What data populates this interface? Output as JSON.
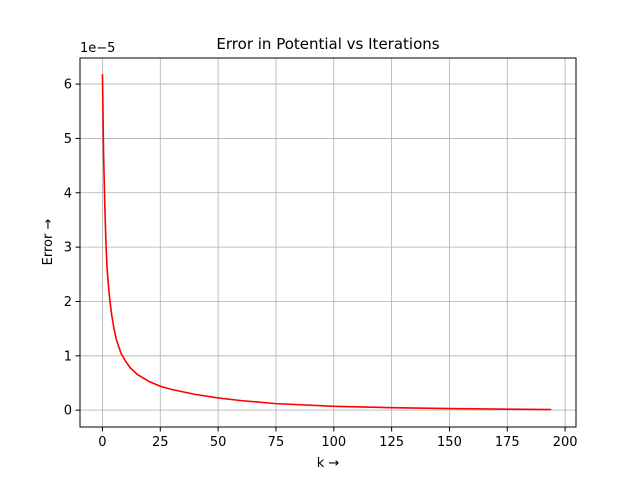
{
  "chart_data": {
    "type": "line",
    "title": "Error in Potential vs Iterations",
    "xlabel": "k →",
    "ylabel": "Error →",
    "offset_text": "1e−5",
    "xlim": [
      -9.7,
      204.7
    ],
    "ylim": [
      -3.1e-06,
      6.48e-05
    ],
    "xticks": [
      0,
      25,
      50,
      75,
      100,
      125,
      150,
      175,
      200
    ],
    "yticks": [
      0,
      1e-05,
      2e-05,
      3e-05,
      4e-05,
      5e-05,
      6e-05
    ],
    "ytick_labels": [
      "0",
      "1",
      "2",
      "3",
      "4",
      "5",
      "6"
    ],
    "grid": true,
    "series": [
      {
        "color": "#ff0000",
        "x": [
          0,
          0.5,
          1,
          1.5,
          2,
          3,
          4,
          5,
          6,
          8,
          10,
          12,
          15,
          20,
          25,
          30,
          40,
          50,
          60,
          75,
          100,
          125,
          150,
          175,
          194
        ],
        "y": [
          6.18e-05,
          4.7e-05,
          3.8e-05,
          3.1e-05,
          2.6e-05,
          2.1e-05,
          1.75e-05,
          1.5e-05,
          1.3e-05,
          1.05e-05,
          9e-06,
          7.8e-06,
          6.6e-06,
          5.3e-06,
          4.4e-06,
          3.8e-06,
          2.9e-06,
          2.25e-06,
          1.75e-06,
          1.2e-06,
          7e-07,
          4.5e-07,
          3e-07,
          1.8e-07,
          1e-07
        ]
      }
    ]
  }
}
